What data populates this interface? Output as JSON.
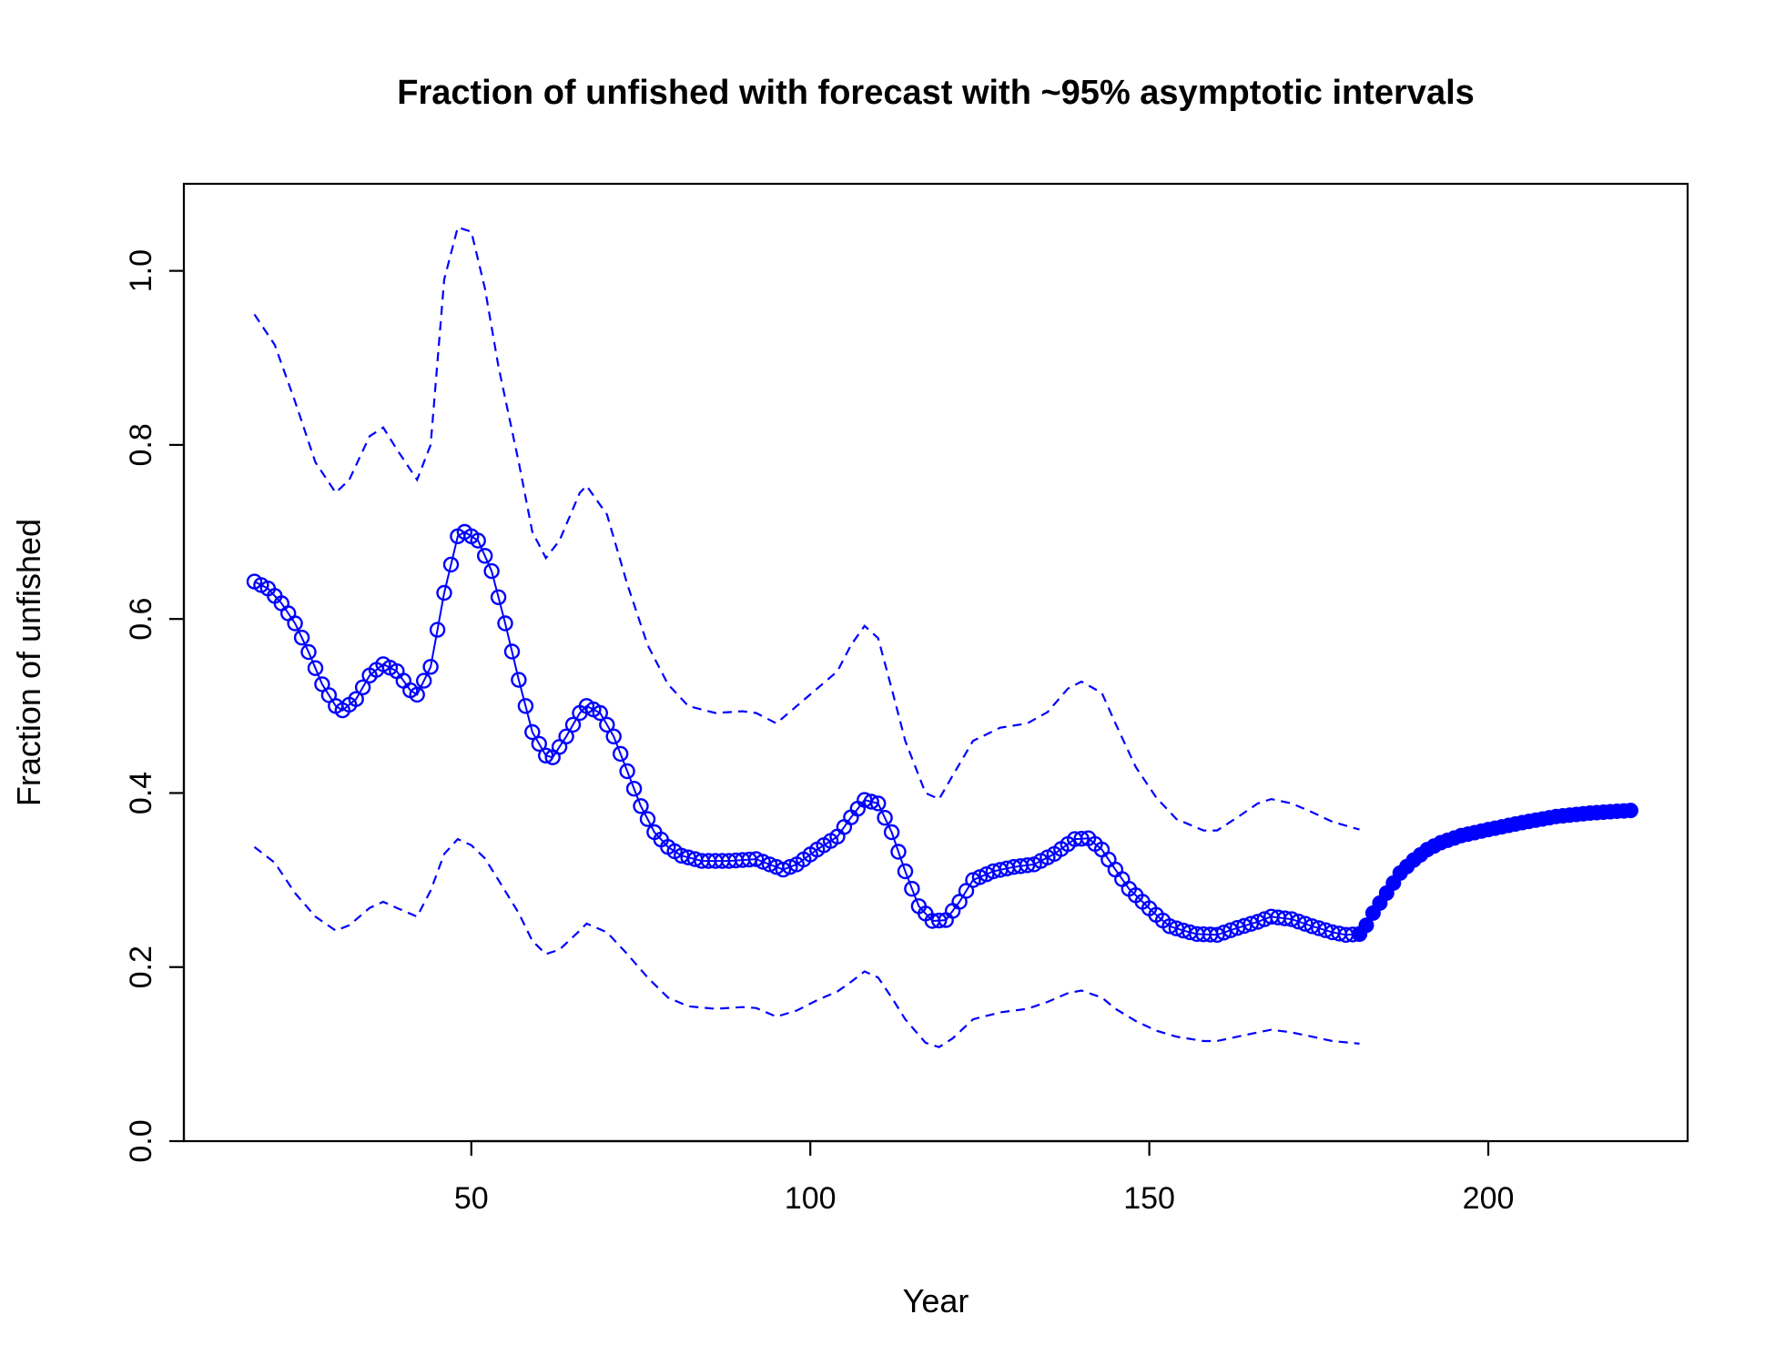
{
  "chart_data": {
    "type": "line",
    "title": "Fraction of unfished with forecast with ~95% asymptotic intervals",
    "xlabel": "Year",
    "ylabel": "Fraction of unfished",
    "xlim": [
      7.6,
      229.4
    ],
    "ylim": [
      0,
      1.1
    ],
    "x_ticks": [
      50,
      100,
      150,
      200
    ],
    "y_ticks": [
      0.0,
      0.2,
      0.4,
      0.6,
      0.8,
      1.0
    ],
    "x_tick_labels": [
      "50",
      "100",
      "150",
      "200"
    ],
    "y_tick_labels": [
      "0.0",
      "0.2",
      "0.4",
      "0.6",
      "0.8",
      "1.0"
    ],
    "grid": false,
    "legend": "none",
    "colors": {
      "series": "#0000ff",
      "axes": "#000000"
    },
    "estimate_knots": [
      [
        18,
        0.643
      ],
      [
        20,
        0.635
      ],
      [
        22,
        0.618
      ],
      [
        24,
        0.595
      ],
      [
        26,
        0.562
      ],
      [
        28,
        0.525
      ],
      [
        30,
        0.5
      ],
      [
        31,
        0.495
      ],
      [
        33,
        0.508
      ],
      [
        35,
        0.535
      ],
      [
        37,
        0.548
      ],
      [
        39,
        0.54
      ],
      [
        41,
        0.518
      ],
      [
        42,
        0.513
      ],
      [
        44,
        0.545
      ],
      [
        46,
        0.63
      ],
      [
        48,
        0.695
      ],
      [
        49,
        0.7
      ],
      [
        51,
        0.69
      ],
      [
        53,
        0.655
      ],
      [
        55,
        0.595
      ],
      [
        57,
        0.53
      ],
      [
        59,
        0.47
      ],
      [
        61,
        0.443
      ],
      [
        62,
        0.441
      ],
      [
        64,
        0.465
      ],
      [
        66,
        0.492
      ],
      [
        67,
        0.5
      ],
      [
        69,
        0.492
      ],
      [
        71,
        0.465
      ],
      [
        73,
        0.425
      ],
      [
        75,
        0.385
      ],
      [
        77,
        0.355
      ],
      [
        79,
        0.338
      ],
      [
        81,
        0.328
      ],
      [
        84,
        0.322
      ],
      [
        88,
        0.322
      ],
      [
        92,
        0.324
      ],
      [
        94,
        0.318
      ],
      [
        96,
        0.312
      ],
      [
        98,
        0.318
      ],
      [
        101,
        0.335
      ],
      [
        104,
        0.35
      ],
      [
        106,
        0.372
      ],
      [
        108,
        0.392
      ],
      [
        110,
        0.388
      ],
      [
        112,
        0.355
      ],
      [
        114,
        0.31
      ],
      [
        116,
        0.27
      ],
      [
        118,
        0.253
      ],
      [
        120,
        0.254
      ],
      [
        122,
        0.275
      ],
      [
        124,
        0.3
      ],
      [
        127,
        0.31
      ],
      [
        130,
        0.315
      ],
      [
        133,
        0.318
      ],
      [
        136,
        0.33
      ],
      [
        139,
        0.347
      ],
      [
        141,
        0.348
      ],
      [
        143,
        0.335
      ],
      [
        145,
        0.312
      ],
      [
        147,
        0.29
      ],
      [
        149,
        0.275
      ],
      [
        151,
        0.26
      ],
      [
        153,
        0.247
      ],
      [
        155,
        0.242
      ],
      [
        157,
        0.238
      ],
      [
        160,
        0.237
      ],
      [
        163,
        0.245
      ],
      [
        166,
        0.252
      ],
      [
        168,
        0.258
      ],
      [
        171,
        0.255
      ],
      [
        174,
        0.247
      ],
      [
        177,
        0.24
      ],
      [
        179,
        0.237
      ],
      [
        181,
        0.238
      ]
    ],
    "forecast_knots": [
      [
        181,
        0.238
      ],
      [
        182,
        0.248
      ],
      [
        183,
        0.262
      ],
      [
        185,
        0.285
      ],
      [
        187,
        0.308
      ],
      [
        189,
        0.323
      ],
      [
        191,
        0.335
      ],
      [
        193,
        0.343
      ],
      [
        196,
        0.351
      ],
      [
        200,
        0.358
      ],
      [
        205,
        0.366
      ],
      [
        210,
        0.373
      ],
      [
        215,
        0.377
      ],
      [
        219,
        0.379
      ],
      [
        221,
        0.38
      ]
    ],
    "upper_ci": [
      [
        18,
        0.95
      ],
      [
        21,
        0.915
      ],
      [
        24,
        0.85
      ],
      [
        27,
        0.78
      ],
      [
        30,
        0.745
      ],
      [
        32,
        0.76
      ],
      [
        35,
        0.81
      ],
      [
        37,
        0.82
      ],
      [
        39,
        0.795
      ],
      [
        42,
        0.76
      ],
      [
        44,
        0.8
      ],
      [
        46,
        0.99
      ],
      [
        48,
        1.05
      ],
      [
        50,
        1.045
      ],
      [
        52,
        0.98
      ],
      [
        54,
        0.89
      ],
      [
        57,
        0.78
      ],
      [
        59,
        0.7
      ],
      [
        61,
        0.67
      ],
      [
        63,
        0.69
      ],
      [
        66,
        0.745
      ],
      [
        67,
        0.753
      ],
      [
        70,
        0.72
      ],
      [
        73,
        0.64
      ],
      [
        76,
        0.57
      ],
      [
        79,
        0.525
      ],
      [
        82,
        0.5
      ],
      [
        86,
        0.492
      ],
      [
        90,
        0.494
      ],
      [
        92,
        0.492
      ],
      [
        95,
        0.48
      ],
      [
        98,
        0.5
      ],
      [
        101,
        0.52
      ],
      [
        104,
        0.54
      ],
      [
        106,
        0.57
      ],
      [
        108,
        0.592
      ],
      [
        110,
        0.578
      ],
      [
        112,
        0.52
      ],
      [
        114,
        0.46
      ],
      [
        117,
        0.4
      ],
      [
        119,
        0.393
      ],
      [
        121,
        0.42
      ],
      [
        124,
        0.46
      ],
      [
        128,
        0.475
      ],
      [
        132,
        0.48
      ],
      [
        135,
        0.493
      ],
      [
        138,
        0.52
      ],
      [
        140,
        0.528
      ],
      [
        143,
        0.515
      ],
      [
        145,
        0.48
      ],
      [
        148,
        0.43
      ],
      [
        151,
        0.395
      ],
      [
        154,
        0.37
      ],
      [
        158,
        0.357
      ],
      [
        160,
        0.357
      ],
      [
        163,
        0.372
      ],
      [
        166,
        0.388
      ],
      [
        168,
        0.393
      ],
      [
        171,
        0.388
      ],
      [
        174,
        0.378
      ],
      [
        177,
        0.367
      ],
      [
        181,
        0.358
      ]
    ],
    "lower_ci": [
      [
        18,
        0.338
      ],
      [
        21,
        0.32
      ],
      [
        24,
        0.285
      ],
      [
        27,
        0.258
      ],
      [
        30,
        0.242
      ],
      [
        32,
        0.248
      ],
      [
        35,
        0.268
      ],
      [
        37,
        0.275
      ],
      [
        39,
        0.268
      ],
      [
        42,
        0.258
      ],
      [
        44,
        0.288
      ],
      [
        46,
        0.33
      ],
      [
        48,
        0.347
      ],
      [
        50,
        0.34
      ],
      [
        52,
        0.325
      ],
      [
        54,
        0.3
      ],
      [
        57,
        0.262
      ],
      [
        59,
        0.23
      ],
      [
        61,
        0.215
      ],
      [
        63,
        0.22
      ],
      [
        66,
        0.242
      ],
      [
        67,
        0.25
      ],
      [
        70,
        0.24
      ],
      [
        73,
        0.215
      ],
      [
        76,
        0.188
      ],
      [
        79,
        0.165
      ],
      [
        82,
        0.155
      ],
      [
        86,
        0.152
      ],
      [
        90,
        0.154
      ],
      [
        92,
        0.153
      ],
      [
        95,
        0.143
      ],
      [
        98,
        0.15
      ],
      [
        101,
        0.162
      ],
      [
        104,
        0.172
      ],
      [
        106,
        0.183
      ],
      [
        108,
        0.195
      ],
      [
        110,
        0.188
      ],
      [
        112,
        0.165
      ],
      [
        114,
        0.14
      ],
      [
        117,
        0.113
      ],
      [
        119,
        0.108
      ],
      [
        121,
        0.118
      ],
      [
        124,
        0.14
      ],
      [
        128,
        0.148
      ],
      [
        132,
        0.152
      ],
      [
        135,
        0.16
      ],
      [
        138,
        0.17
      ],
      [
        140,
        0.173
      ],
      [
        143,
        0.165
      ],
      [
        145,
        0.152
      ],
      [
        148,
        0.138
      ],
      [
        151,
        0.127
      ],
      [
        154,
        0.12
      ],
      [
        158,
        0.115
      ],
      [
        160,
        0.115
      ],
      [
        163,
        0.12
      ],
      [
        166,
        0.125
      ],
      [
        168,
        0.128
      ],
      [
        171,
        0.125
      ],
      [
        174,
        0.12
      ],
      [
        177,
        0.115
      ],
      [
        181,
        0.112
      ]
    ]
  }
}
